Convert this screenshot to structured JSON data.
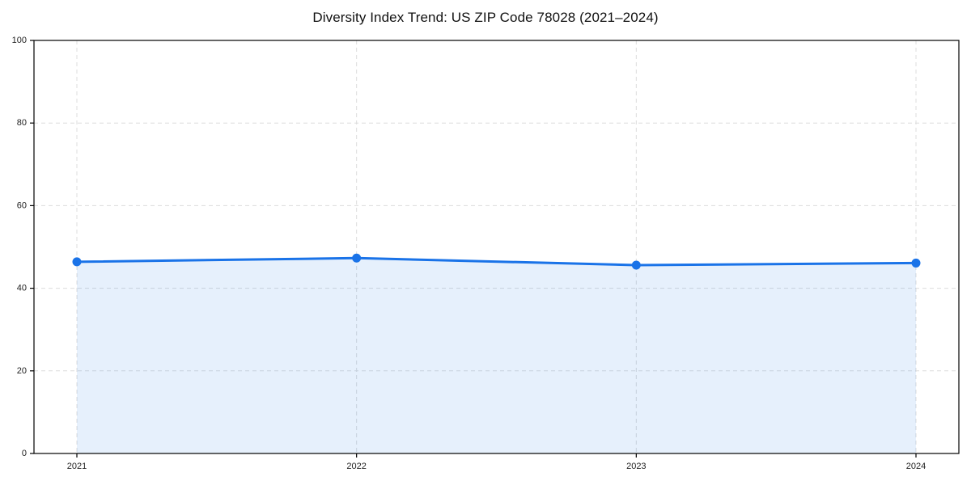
{
  "page": {
    "background": "#ffffff"
  },
  "chart_data": {
    "type": "area",
    "title": "Diversity Index Trend: US ZIP Code 78028 (2021–2024)",
    "xlabel": "",
    "ylabel": "",
    "categories": [
      "2021",
      "2022",
      "2023",
      "2024"
    ],
    "series": [
      {
        "name": "Diversity Index",
        "values": [
          46.4,
          47.3,
          45.6,
          46.1
        ]
      }
    ],
    "ylim": [
      0,
      100
    ],
    "yticks": [
      0,
      20,
      40,
      60,
      80,
      100
    ],
    "grid": {
      "style": "dashed",
      "color": "#dcdcdc"
    },
    "legend_position": "none",
    "colors": {
      "line": "#1a73e8",
      "marker": "#1a73e8",
      "fill": "rgba(26,115,232,0.11)",
      "axis": "#000000",
      "tick_label": "#222222",
      "title": "#111111"
    }
  }
}
